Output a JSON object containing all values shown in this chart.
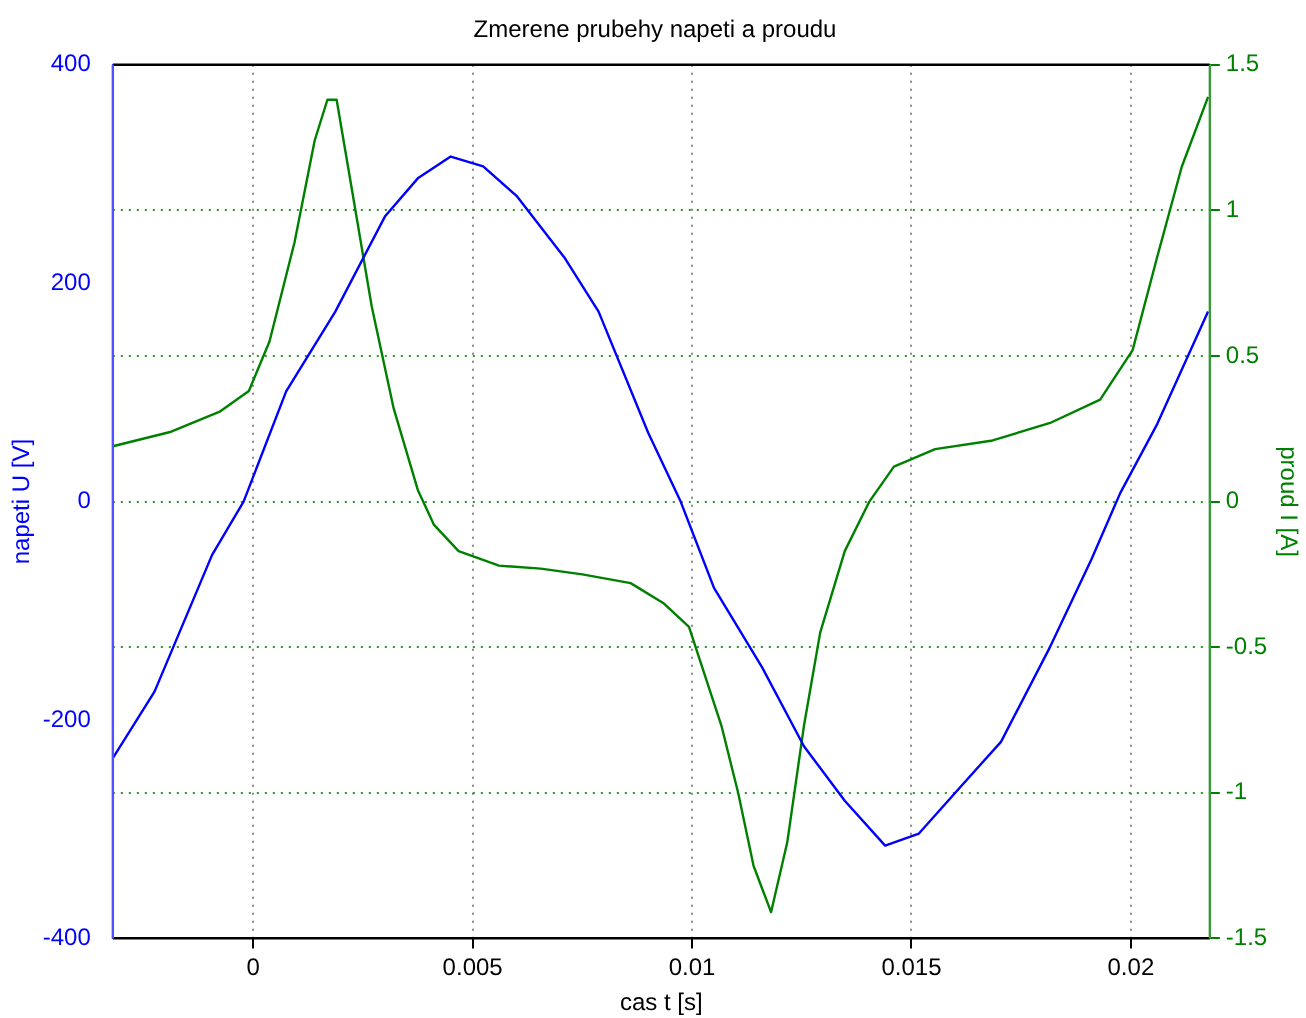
{
  "chart_data": {
    "type": "line",
    "title": "Zmerene prubehy napeti a proudu",
    "xlabel": "cas t [s]",
    "ylabel": "napeti U [V]",
    "y2label": "proud I [A]",
    "xlim": [
      -0.0032,
      0.0218
    ],
    "xticks": [
      0,
      0.005,
      0.01,
      0.015,
      0.02
    ],
    "ylim": [
      -400,
      400
    ],
    "yticks": [
      -400,
      -200,
      0,
      200,
      400
    ],
    "y2lim": [
      -1.5,
      1.5
    ],
    "y2ticks": [
      -1.5,
      -1,
      -0.5,
      0,
      0.5,
      1,
      1.5
    ],
    "grid": true,
    "legend": false,
    "marker": "none",
    "line_style": "solid",
    "series": [
      {
        "color": "#0000ff",
        "x": [
          -0.0032,
          -0.00225,
          -0.00094,
          -0.00022,
          0.00075,
          0.00187,
          0.003,
          0.00375,
          0.0045,
          0.00524,
          0.006,
          0.0071,
          0.00787,
          0.009,
          0.00974,
          0.0105,
          0.0116,
          0.01255,
          0.01348,
          0.0144,
          0.01517,
          0.0161,
          0.01704,
          0.01816,
          0.0191,
          0.01976,
          0.0206,
          0.02176
        ],
        "values": [
          -235,
          -174,
          -49,
          0,
          101,
          174,
          261,
          296,
          316,
          307,
          280,
          223,
          174,
          63,
          0,
          -79,
          -152,
          -224,
          -274,
          -315,
          -304,
          -262,
          -220,
          -133,
          -53,
          8,
          71,
          174
        ]
      },
      {
        "color": "#008000",
        "axis": "y2",
        "x": [
          -0.0032,
          -0.00187,
          -0.00075,
          -0.0001,
          0.00037,
          0.00094,
          0.0014,
          0.00169,
          0.0019,
          0.00225,
          0.0027,
          0.0032,
          0.00375,
          0.00412,
          0.00468,
          0.0056,
          0.00655,
          0.0075,
          0.0086,
          0.00936,
          0.00993,
          0.0103,
          0.01067,
          0.01105,
          0.0114,
          0.0118,
          0.01217,
          0.01255,
          0.01292,
          0.01348,
          0.01404,
          0.0146,
          0.01554,
          0.01685,
          0.01816,
          0.0193,
          0.02004,
          0.0206,
          0.02116,
          0.02176
        ],
        "values": [
          0.19,
          0.24,
          0.31,
          0.38,
          0.55,
          0.89,
          1.24,
          1.38,
          1.38,
          1.07,
          0.67,
          0.32,
          0.04,
          -0.08,
          -0.17,
          -0.22,
          -0.23,
          -0.25,
          -0.28,
          -0.35,
          -0.43,
          -0.6,
          -0.77,
          -1,
          -1.25,
          -1.41,
          -1.17,
          -0.77,
          -0.45,
          -0.17,
          0,
          0.12,
          0.18,
          0.21,
          0.27,
          0.35,
          0.52,
          0.84,
          1.15,
          1.39
        ]
      }
    ]
  }
}
